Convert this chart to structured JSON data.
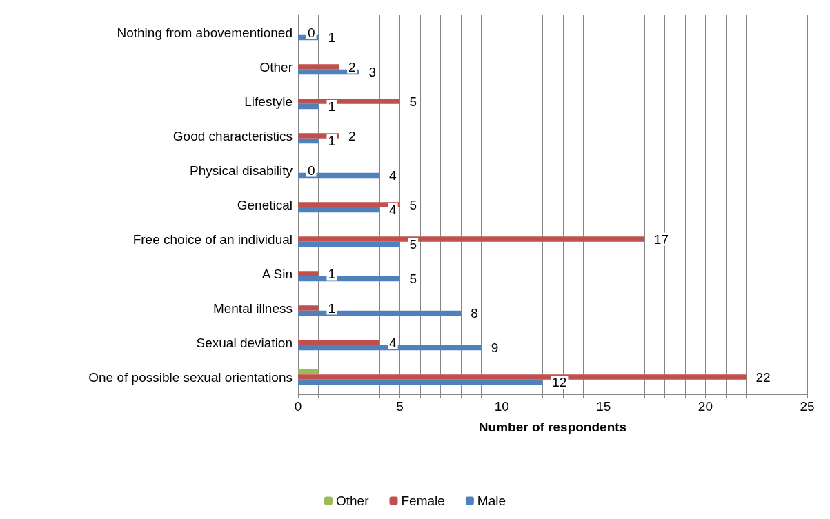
{
  "chart_data": {
    "type": "bar",
    "orientation": "horizontal",
    "xlabel": "Number of respondents",
    "categories": [
      "Nothing from abovementioned",
      "Other",
      "Lifestyle",
      "Good characteristics",
      "Physical disability",
      "Genetical",
      "Free choice of an individual",
      "A Sin",
      "Mental illness",
      "Sexual deviation",
      "One of possible sexual orientations"
    ],
    "series": [
      {
        "name": "Other",
        "color": "#9bbb59",
        "values": [
          null,
          null,
          null,
          null,
          null,
          null,
          null,
          null,
          null,
          null,
          1
        ]
      },
      {
        "name": "Female",
        "color": "#c0504d",
        "values": [
          0,
          2,
          5,
          2,
          0,
          5,
          17,
          1,
          1,
          4,
          22
        ],
        "value_labels": [
          "0",
          "2",
          "5",
          "2",
          "0",
          "5",
          "17",
          "1",
          "1",
          "4",
          "22"
        ]
      },
      {
        "name": "Male",
        "color": "#4f81bd",
        "values": [
          1,
          3,
          1,
          1,
          4,
          4,
          5,
          5,
          8,
          9,
          12
        ],
        "value_labels": [
          "1",
          "3",
          "1",
          "1",
          "4",
          "4",
          "5",
          "5",
          "8",
          "9",
          "12"
        ]
      }
    ],
    "xlim": [
      0,
      25
    ],
    "xticks": [
      0,
      {
        "value": 1,
        "label": null
      },
      {
        "value": 2,
        "label": null
      },
      {
        "value": 3,
        "label": null
      },
      {
        "value": 4,
        "label": null
      },
      5,
      {
        "value": 6,
        "label": null
      },
      {
        "value": 7,
        "label": null
      },
      {
        "value": 8,
        "label": null
      },
      {
        "value": 9,
        "label": null
      },
      10,
      {
        "value": 11,
        "label": null
      },
      {
        "value": 12,
        "label": null
      },
      {
        "value": 13,
        "label": null
      },
      {
        "value": 14,
        "label": null
      },
      15,
      {
        "value": 16,
        "label": null
      },
      {
        "value": 17,
        "label": null
      },
      {
        "value": 18,
        "label": null
      },
      {
        "value": 19,
        "label": null
      },
      20,
      {
        "value": 21,
        "label": null
      },
      {
        "value": 22,
        "label": null
      },
      {
        "value": 23,
        "label": null
      },
      {
        "value": 24,
        "label": null
      },
      25
    ],
    "grid": "x",
    "legend": "bottom"
  }
}
